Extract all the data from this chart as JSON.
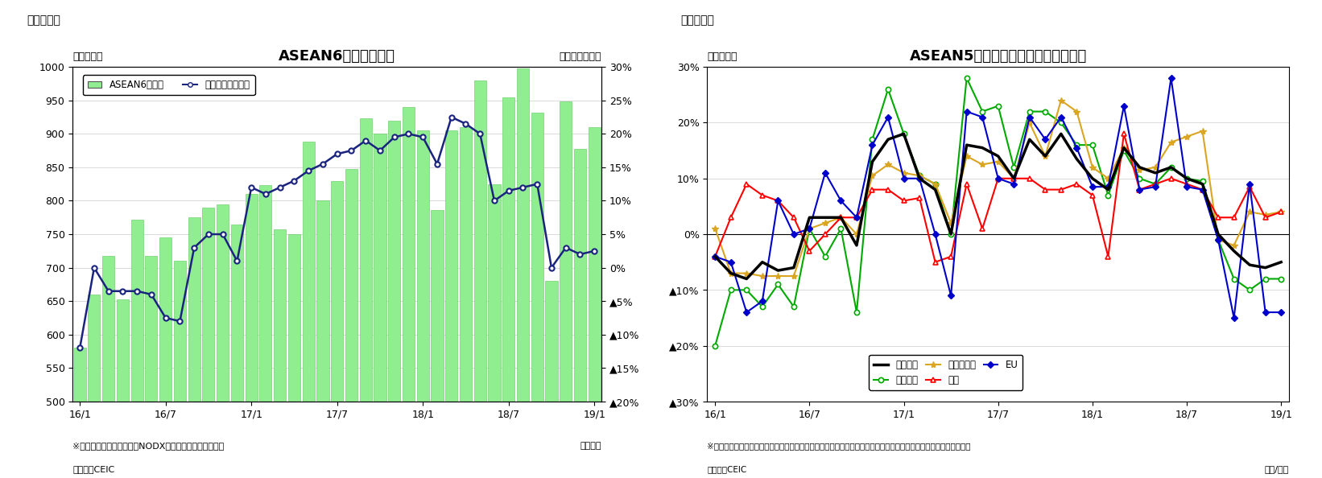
{
  "fig1": {
    "title": "ASEAN6カ国の輸出額",
    "header": "（図表１）",
    "ylabel_left": "（億ドル）",
    "ylabel_right": "（前年同月比）",
    "xlabel": "（年月）",
    "note1": "※シンガポールの輸出額はNODX（石油と再輸出除く）。",
    "note2": "（資料）CEIC",
    "ylim_left": [
      500,
      1000
    ],
    "ylim_right": [
      -0.2,
      0.3
    ],
    "yticks_left": [
      500,
      550,
      600,
      650,
      700,
      750,
      800,
      850,
      900,
      950,
      1000
    ],
    "yticks_right": [
      0.3,
      0.25,
      0.2,
      0.15,
      0.1,
      0.05,
      0.0,
      -0.05,
      -0.1,
      -0.15,
      -0.2
    ],
    "ytick_labels_right": [
      "30%",
      "25%",
      "20%",
      "15%",
      "10%",
      "5%",
      "0%",
      "▲5%",
      "▲10%",
      "▲15%",
      "▲20%"
    ],
    "bar_color": "#90EE90",
    "bar_edge_color": "#5DC85D",
    "line_color": "#1a237e",
    "legend_bar_label": "ASEAN6カ国計",
    "legend_line_label": "増加率（右目盛）",
    "xtick_labels": [
      "16/1",
      "16/7",
      "17/1",
      "17/7",
      "18/1",
      "18/7",
      "19/1"
    ],
    "bar_data": [
      580,
      660,
      718,
      653,
      772,
      718,
      745,
      710,
      775,
      790,
      795,
      765,
      810,
      823,
      757,
      750,
      888,
      800,
      830,
      848,
      923,
      900,
      920,
      940,
      905,
      786,
      905,
      910,
      980,
      825,
      955,
      998,
      932,
      680,
      948,
      878,
      910
    ],
    "line_data": [
      -0.12,
      0.0,
      -0.035,
      -0.035,
      -0.035,
      -0.04,
      -0.075,
      -0.08,
      0.03,
      0.05,
      0.05,
      0.01,
      0.12,
      0.11,
      0.12,
      0.13,
      0.145,
      0.155,
      0.17,
      0.175,
      0.19,
      0.175,
      0.195,
      0.2,
      0.195,
      0.155,
      0.225,
      0.215,
      0.2,
      0.1,
      0.115,
      0.12,
      0.125,
      0.0,
      0.03,
      0.02,
      0.025
    ]
  },
  "fig2": {
    "title": "ASEAN5カ国　仕向け地別の輸出動向",
    "header": "（図表２）",
    "ylabel_left": "（前年比）",
    "xlabel": "（年/月）",
    "note1": "※タイ、マレーシア、シンガポール（地場輸出）、インドネシア（非石油ガス輸出）、フィリピンの輸出より算出。",
    "note2": "（資料）CEIC",
    "ylim": [
      -0.3,
      0.3
    ],
    "yticks": [
      0.3,
      0.2,
      0.1,
      0.0,
      -0.1,
      -0.2,
      -0.3
    ],
    "ytick_labels": [
      "30%",
      "20%",
      "10%",
      "0%",
      "▲10%",
      "▲20%",
      "▲30%"
    ],
    "xtick_labels": [
      "16/1",
      "16/7",
      "17/1",
      "17/7",
      "18/1",
      "18/7",
      "19/1"
    ],
    "legend_entries": [
      "輸出全体",
      "東アジア",
      "東南アジア",
      "北米",
      "EU"
    ],
    "colors": {
      "total": "#000000",
      "east_asia": "#00AA00",
      "southeast_asia": "#DAA520",
      "north_america": "#FF0000",
      "eu": "#0000CC"
    },
    "total_data": [
      -0.04,
      -0.07,
      -0.08,
      -0.05,
      -0.065,
      -0.06,
      0.03,
      0.03,
      0.03,
      -0.02,
      0.13,
      0.17,
      0.18,
      0.1,
      0.08,
      0.0,
      0.16,
      0.155,
      0.14,
      0.1,
      0.17,
      0.14,
      0.18,
      0.135,
      0.1,
      0.08,
      0.155,
      0.12,
      0.11,
      0.12,
      0.1,
      0.09,
      0.0,
      -0.03,
      -0.055,
      -0.06,
      -0.05
    ],
    "east_asia_data": [
      -0.2,
      -0.1,
      -0.1,
      -0.13,
      -0.09,
      -0.13,
      0.01,
      -0.04,
      0.01,
      -0.14,
      0.17,
      0.26,
      0.18,
      0.105,
      0.09,
      0.0,
      0.28,
      0.22,
      0.23,
      0.12,
      0.22,
      0.22,
      0.2,
      0.16,
      0.16,
      0.07,
      0.15,
      0.1,
      0.09,
      0.12,
      0.1,
      0.095,
      -0.01,
      -0.08,
      -0.1,
      -0.08,
      -0.08
    ],
    "southeast_asia_data": [
      0.01,
      -0.07,
      -0.07,
      -0.075,
      -0.075,
      -0.075,
      0.01,
      0.02,
      0.03,
      0.0,
      0.105,
      0.125,
      0.11,
      0.105,
      0.09,
      0.02,
      0.14,
      0.125,
      0.13,
      0.1,
      0.2,
      0.14,
      0.24,
      0.22,
      0.12,
      0.1,
      0.155,
      0.115,
      0.12,
      0.165,
      0.175,
      0.185,
      -0.01,
      -0.02,
      0.04,
      0.035,
      0.04
    ],
    "north_america_data": [
      -0.04,
      0.03,
      0.09,
      0.07,
      0.06,
      0.03,
      -0.03,
      0.0,
      0.03,
      0.03,
      0.08,
      0.08,
      0.06,
      0.065,
      -0.05,
      -0.04,
      0.09,
      0.01,
      0.1,
      0.1,
      0.1,
      0.08,
      0.08,
      0.09,
      0.07,
      -0.04,
      0.18,
      0.08,
      0.09,
      0.1,
      0.09,
      0.08,
      0.03,
      0.03,
      0.085,
      0.03,
      0.04
    ],
    "eu_data": [
      -0.04,
      -0.05,
      -0.14,
      -0.12,
      0.06,
      0.0,
      0.01,
      0.11,
      0.06,
      0.03,
      0.16,
      0.21,
      0.1,
      0.1,
      0.0,
      -0.11,
      0.22,
      0.21,
      0.1,
      0.09,
      0.21,
      0.17,
      0.21,
      0.155,
      0.085,
      0.085,
      0.23,
      0.08,
      0.085,
      0.28,
      0.085,
      0.08,
      -0.01,
      -0.15,
      0.09,
      -0.14,
      -0.14
    ]
  }
}
